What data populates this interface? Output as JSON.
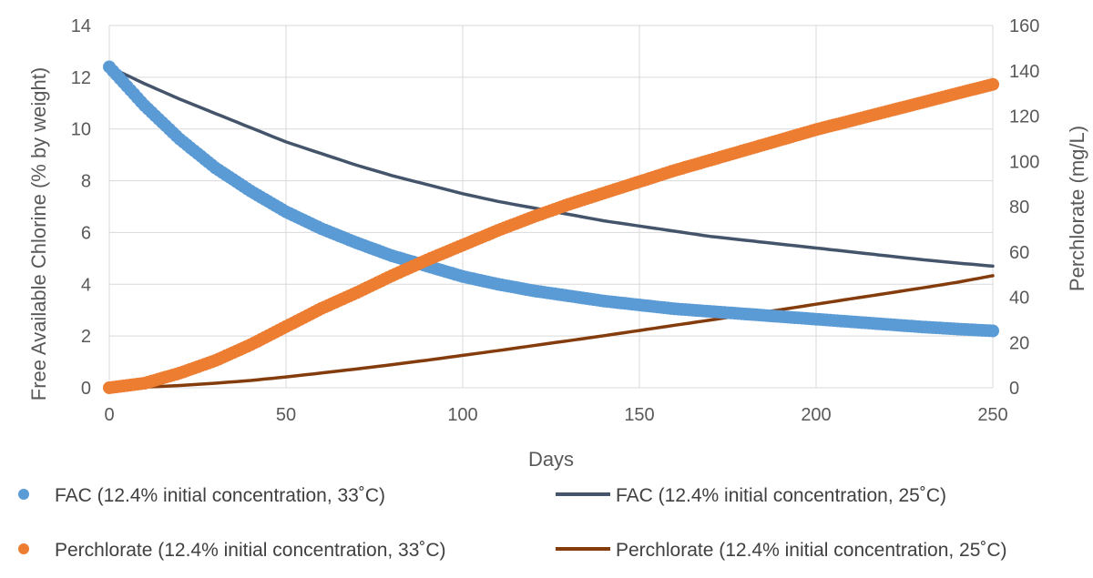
{
  "chart_data": {
    "type": "line",
    "title": "",
    "xlabel": "Days",
    "ylabel": "Free Available Chlorine (% by weight)",
    "y2label": "Perchlorate (mg/L)",
    "xlim": [
      0,
      250
    ],
    "ylim": [
      0,
      14
    ],
    "y2lim": [
      0,
      160
    ],
    "xticks": [
      0,
      50,
      100,
      150,
      200,
      250
    ],
    "yticks": [
      0,
      2,
      4,
      6,
      8,
      10,
      12,
      14
    ],
    "y2ticks": [
      0,
      20,
      40,
      60,
      80,
      100,
      120,
      140,
      160
    ],
    "grid": true,
    "legend_position": "bottom",
    "x": [
      0,
      10,
      20,
      30,
      40,
      50,
      60,
      70,
      80,
      90,
      100,
      110,
      120,
      130,
      140,
      150,
      160,
      170,
      180,
      190,
      200,
      210,
      220,
      230,
      240,
      250
    ],
    "series": [
      {
        "name": "FAC (12.4% initial concentration, 33˚C)",
        "axis": "left",
        "style": "markers",
        "color": "#5b9bd5",
        "values": [
          12.4,
          10.9,
          9.6,
          8.5,
          7.6,
          6.8,
          6.15,
          5.6,
          5.1,
          4.7,
          4.3,
          4.0,
          3.75,
          3.55,
          3.35,
          3.2,
          3.05,
          2.95,
          2.85,
          2.75,
          2.65,
          2.55,
          2.45,
          2.35,
          2.27,
          2.2
        ]
      },
      {
        "name": "FAC (12.4% initial concentration, 25˚C)",
        "axis": "left",
        "style": "line",
        "color": "#44546a",
        "values": [
          12.4,
          11.75,
          11.15,
          10.6,
          10.05,
          9.5,
          9.05,
          8.6,
          8.2,
          7.85,
          7.5,
          7.2,
          6.95,
          6.7,
          6.45,
          6.25,
          6.05,
          5.85,
          5.7,
          5.55,
          5.4,
          5.25,
          5.1,
          4.95,
          4.82,
          4.7
        ]
      },
      {
        "name": "Perchlorate (12.4% initial concentration, 33˚C)",
        "axis": "right",
        "style": "markers",
        "color": "#ed7d31",
        "values": [
          0,
          2,
          6.5,
          12,
          19,
          27,
          35,
          42,
          49.5,
          56.5,
          63,
          69.5,
          75.5,
          81,
          86,
          91,
          96,
          100.5,
          105,
          109.5,
          114,
          118,
          122,
          126,
          130,
          134
        ]
      },
      {
        "name": "Perchlorate (12.4% initial concentration, 25˚C)",
        "axis": "right",
        "style": "line",
        "color": "#843c0c",
        "values": [
          0,
          0.3,
          1,
          2,
          3.2,
          4.8,
          6.5,
          8.3,
          10.2,
          12.2,
          14.3,
          16.4,
          18.6,
          20.8,
          23,
          25.3,
          27.6,
          29.9,
          32.2,
          34.5,
          36.9,
          39.3,
          41.7,
          44.1,
          46.6,
          49.5
        ]
      }
    ]
  }
}
